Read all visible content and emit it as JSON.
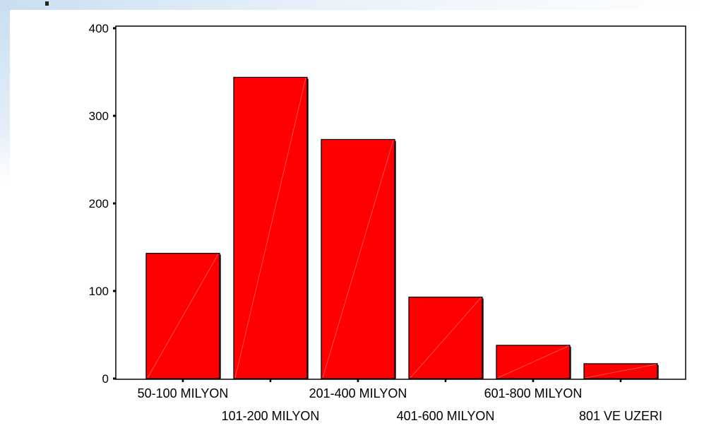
{
  "chart_data": {
    "type": "bar",
    "categories": [
      "50-100 MILYON",
      "101-200 MILYON",
      "201-400 MILYON",
      "401-600 MILYON",
      "601-800 MILYON",
      "801 VE UZERI"
    ],
    "values": [
      143,
      344,
      273,
      93,
      38,
      17
    ],
    "title": "",
    "xlabel": "",
    "ylabel": "",
    "ylim": [
      0,
      400
    ],
    "yticks": [
      0,
      100,
      200,
      300,
      400
    ],
    "grid": false,
    "colors": {
      "bar": "#ff0000",
      "bar_border": "#000000",
      "background": "#ffffff"
    }
  }
}
